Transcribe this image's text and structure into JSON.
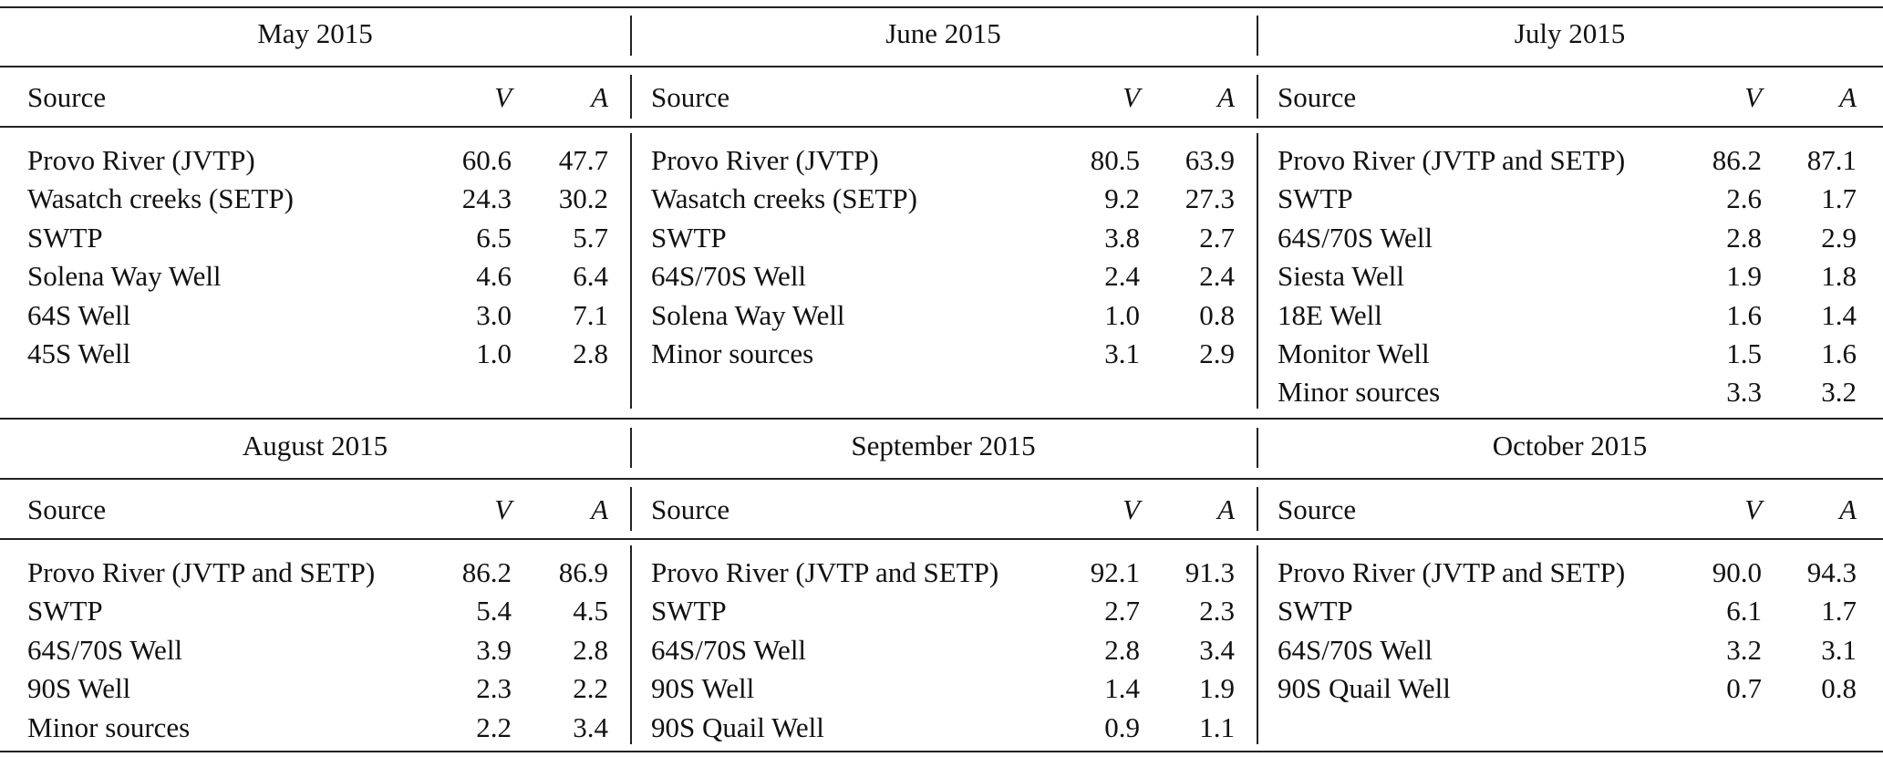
{
  "table": {
    "panels": [
      {
        "title": "May 2015",
        "headers": {
          "source": "Source",
          "v": "V",
          "a": "A"
        },
        "rows": [
          {
            "source": "Provo River (JVTP)",
            "v": "60.6",
            "a": "47.7"
          },
          {
            "source": "Wasatch creeks (SETP)",
            "v": "24.3",
            "a": "30.2"
          },
          {
            "source": "SWTP",
            "v": "6.5",
            "a": "5.7"
          },
          {
            "source": "Solena Way Well",
            "v": "4.6",
            "a": "6.4"
          },
          {
            "source": "64S Well",
            "v": "3.0",
            "a": "7.1"
          },
          {
            "source": "45S Well",
            "v": "1.0",
            "a": "2.8"
          }
        ]
      },
      {
        "title": "June 2015",
        "headers": {
          "source": "Source",
          "v": "V",
          "a": "A"
        },
        "rows": [
          {
            "source": "Provo River (JVTP)",
            "v": "80.5",
            "a": "63.9"
          },
          {
            "source": "Wasatch creeks (SETP)",
            "v": "9.2",
            "a": "27.3"
          },
          {
            "source": "SWTP",
            "v": "3.8",
            "a": "2.7"
          },
          {
            "source": "64S/70S Well",
            "v": "2.4",
            "a": "2.4"
          },
          {
            "source": "Solena Way Well",
            "v": "1.0",
            "a": "0.8"
          },
          {
            "source": "Minor sources",
            "v": "3.1",
            "a": "2.9"
          }
        ]
      },
      {
        "title": "July 2015",
        "headers": {
          "source": "Source",
          "v": "V",
          "a": "A"
        },
        "rows": [
          {
            "source": "Provo River (JVTP and SETP)",
            "v": "86.2",
            "a": "87.1"
          },
          {
            "source": "SWTP",
            "v": "2.6",
            "a": "1.7"
          },
          {
            "source": "64S/70S Well",
            "v": "2.8",
            "a": "2.9"
          },
          {
            "source": "Siesta Well",
            "v": "1.9",
            "a": "1.8"
          },
          {
            "source": "18E Well",
            "v": "1.6",
            "a": "1.4"
          },
          {
            "source": "Monitor Well",
            "v": "1.5",
            "a": "1.6"
          },
          {
            "source": "Minor sources",
            "v": "3.3",
            "a": "3.2"
          }
        ]
      },
      {
        "title": "August 2015",
        "headers": {
          "source": "Source",
          "v": "V",
          "a": "A"
        },
        "rows": [
          {
            "source": "Provo River (JVTP and SETP)",
            "v": "86.2",
            "a": "86.9"
          },
          {
            "source": "SWTP",
            "v": "5.4",
            "a": "4.5"
          },
          {
            "source": "64S/70S Well",
            "v": "3.9",
            "a": "2.8"
          },
          {
            "source": "90S Well",
            "v": "2.3",
            "a": "2.2"
          },
          {
            "source": "Minor sources",
            "v": "2.2",
            "a": "3.4"
          }
        ]
      },
      {
        "title": "September 2015",
        "headers": {
          "source": "Source",
          "v": "V",
          "a": "A"
        },
        "rows": [
          {
            "source": "Provo River (JVTP and SETP)",
            "v": "92.1",
            "a": "91.3"
          },
          {
            "source": "SWTP",
            "v": "2.7",
            "a": "2.3"
          },
          {
            "source": "64S/70S Well",
            "v": "2.8",
            "a": "3.4"
          },
          {
            "source": "90S Well",
            "v": "1.4",
            "a": "1.9"
          },
          {
            "source": "90S Quail Well",
            "v": "0.9",
            "a": "1.1"
          }
        ]
      },
      {
        "title": "October 2015",
        "headers": {
          "source": "Source",
          "v": "V",
          "a": "A"
        },
        "rows": [
          {
            "source": "Provo River (JVTP and SETP)",
            "v": "90.0",
            "a": "94.3"
          },
          {
            "source": "SWTP",
            "v": "6.1",
            "a": "1.7"
          },
          {
            "source": "64S/70S Well",
            "v": "3.2",
            "a": "3.1"
          },
          {
            "source": "90S Quail Well",
            "v": "0.7",
            "a": "0.8"
          }
        ]
      }
    ]
  }
}
